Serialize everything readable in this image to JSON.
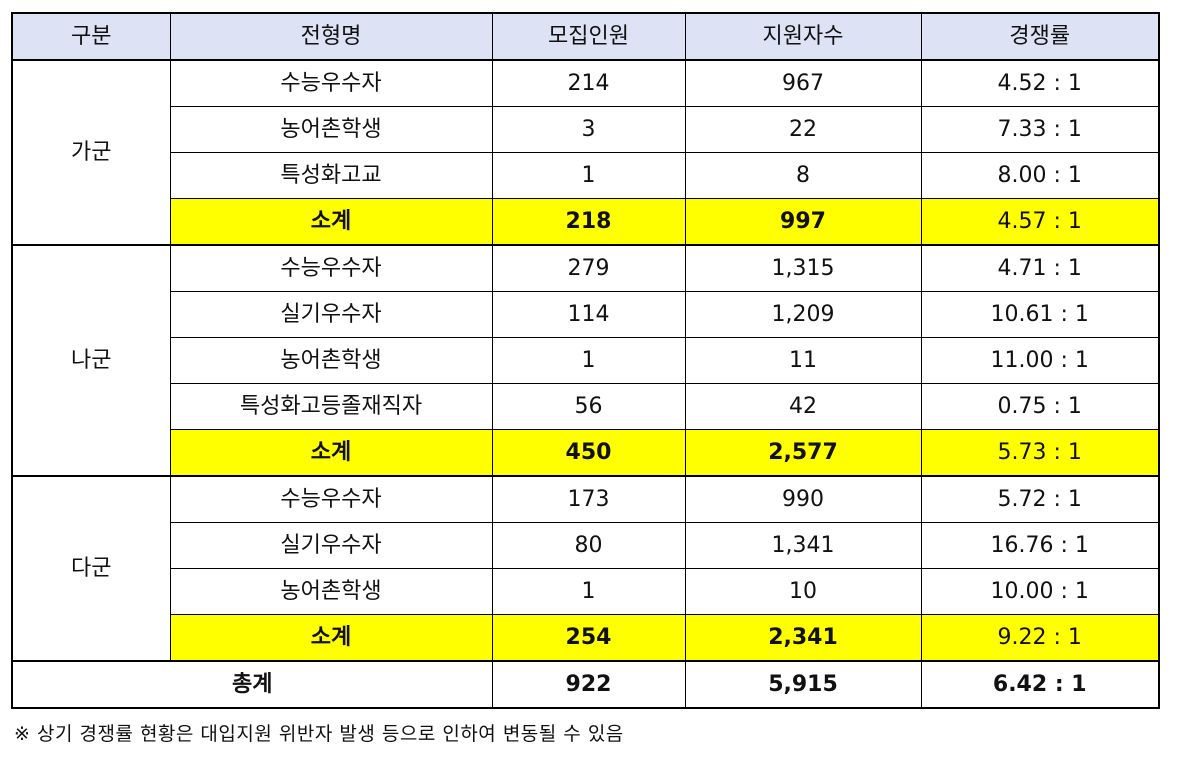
{
  "header": [
    "구분",
    "전형명",
    "모집인원",
    "지원자수",
    "경쟁률"
  ],
  "groups": [
    {
      "name": "가군",
      "rows": [
        {
          "type": "수능우수자",
          "quota": "214",
          "applicants": "967",
          "ratio": "4.52 : 1"
        },
        {
          "type": "농어촌학생",
          "quota": "3",
          "applicants": "22",
          "ratio": "7.33 : 1"
        },
        {
          "type": "특성화고교",
          "quota": "1",
          "applicants": "8",
          "ratio": "8.00 : 1"
        }
      ],
      "subtotal": {
        "label": "소계",
        "quota": "218",
        "applicants": "997",
        "ratio": "4.57 : 1"
      }
    },
    {
      "name": "나군",
      "rows": [
        {
          "type": "수능우수자",
          "quota": "279",
          "applicants": "1,315",
          "ratio": "4.71 : 1"
        },
        {
          "type": "실기우수자",
          "quota": "114",
          "applicants": "1,209",
          "ratio": "10.61 : 1"
        },
        {
          "type": "농어촌학생",
          "quota": "1",
          "applicants": "11",
          "ratio": "11.00 : 1"
        },
        {
          "type": "특성화고등졸재직자",
          "quota": "56",
          "applicants": "42",
          "ratio": "0.75 : 1"
        }
      ],
      "subtotal": {
        "label": "소계",
        "quota": "450",
        "applicants": "2,577",
        "ratio": "5.73 : 1"
      }
    },
    {
      "name": "다군",
      "rows": [
        {
          "type": "수능우수자",
          "quota": "173",
          "applicants": "990",
          "ratio": "5.72 : 1"
        },
        {
          "type": "실기우수자",
          "quota": "80",
          "applicants": "1,341",
          "ratio": "16.76 : 1"
        },
        {
          "type": "농어촌학생",
          "quota": "1",
          "applicants": "10",
          "ratio": "10.00 : 1"
        }
      ],
      "subtotal": {
        "label": "소계",
        "quota": "254",
        "applicants": "2,341",
        "ratio": "9.22 : 1"
      }
    }
  ],
  "total": {
    "label": "총계",
    "quota": "922",
    "applicants": "5,915",
    "ratio": "6.42 : 1"
  },
  "note": "※ 상기 경쟁률 현황은 대입지원 위반자 발생 등으로 인하여 변동될 수 있음",
  "colors": {
    "header_bg": "#dde2f5",
    "subtotal_bg": "#ffff00"
  }
}
